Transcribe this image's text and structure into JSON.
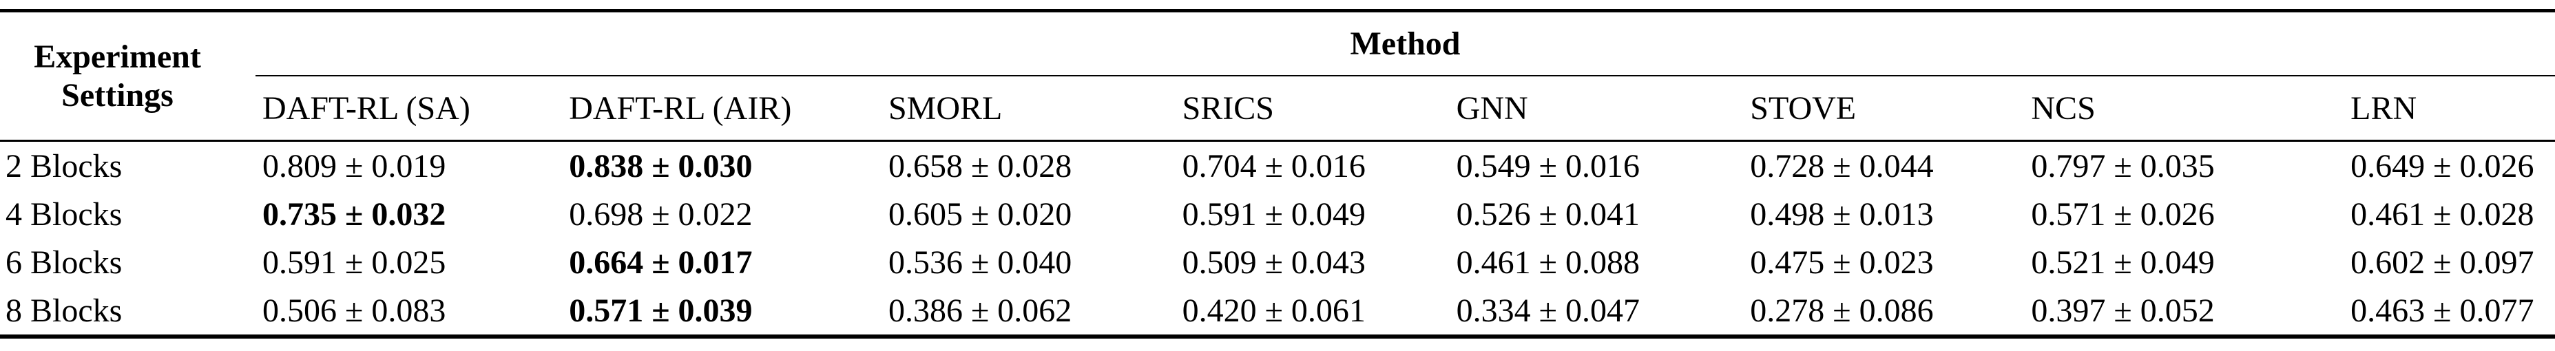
{
  "table": {
    "corner_header": {
      "line1": "Experiment",
      "line2": "Settings"
    },
    "group_header": "Method",
    "columns": [
      "DAFT-RL (SA)",
      "DAFT-RL (AIR)",
      "SMORL",
      "SRICS",
      "GNN",
      "STOVE",
      "NCS",
      "LRN"
    ],
    "rows": [
      {
        "label": "2 Blocks",
        "values": [
          "0.809 ± 0.019",
          "0.838 ± 0.030",
          "0.658 ± 0.028",
          "0.704 ± 0.016",
          "0.549 ± 0.016",
          "0.728 ± 0.044",
          "0.797 ± 0.035",
          "0.649 ± 0.026"
        ],
        "best_index": 1
      },
      {
        "label": "4 Blocks",
        "values": [
          "0.735 ± 0.032",
          "0.698 ± 0.022",
          "0.605 ± 0.020",
          "0.591 ± 0.049",
          "0.526 ± 0.041",
          "0.498 ± 0.013",
          "0.571 ± 0.026",
          "0.461 ± 0.028"
        ],
        "best_index": 0
      },
      {
        "label": "6 Blocks",
        "values": [
          "0.591 ± 0.025",
          "0.664 ± 0.017",
          "0.536 ± 0.040",
          "0.509 ± 0.043",
          "0.461 ± 0.088",
          "0.475 ± 0.023",
          "0.521 ± 0.049",
          "0.602 ± 0.097"
        ],
        "best_index": 1
      },
      {
        "label": "8 Blocks",
        "values": [
          "0.506 ± 0.083",
          "0.571 ± 0.039",
          "0.386 ± 0.062",
          "0.420 ± 0.061",
          "0.334 ± 0.047",
          "0.278 ± 0.086",
          "0.397 ± 0.052",
          "0.463 ± 0.077"
        ],
        "best_index": 1
      }
    ],
    "colors": {
      "text": "#000000",
      "background": "#ffffff",
      "rule": "#000000"
    }
  }
}
